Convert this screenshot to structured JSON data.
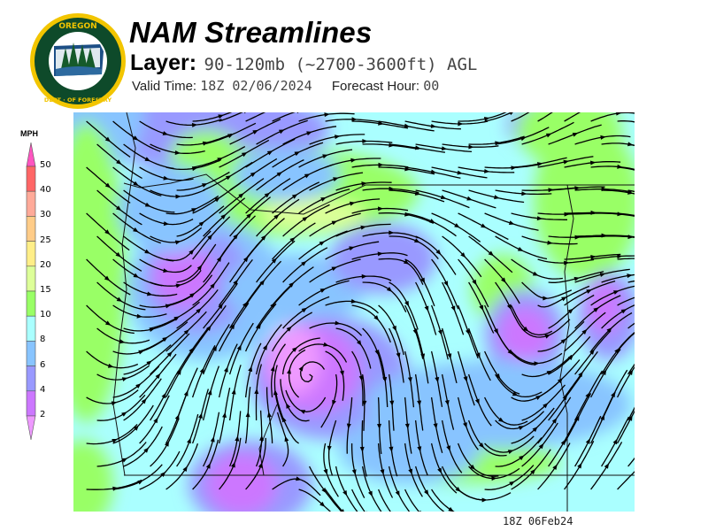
{
  "logo": {
    "text_top": "OREGON",
    "text_bottom": "DEPARTMENT OF FORESTRY"
  },
  "header": {
    "title": "NAM Streamlines",
    "layer_label": "Layer:",
    "layer_value": "90-120mb (~2700-3600ft) AGL",
    "valid_label": "Valid Time:",
    "valid_value": "18Z 02/06/2024",
    "forecast_label": "Forecast Hour:",
    "forecast_value": "00"
  },
  "legend": {
    "unit": "MPH",
    "ticks": [
      "50",
      "40",
      "30",
      "25",
      "20",
      "15",
      "10",
      "8",
      "6",
      "4",
      "2"
    ],
    "colors": {
      "over_50": "#ff55c0",
      "40_50": "#ff6666",
      "30_40": "#ffaa99",
      "25_30": "#ffcc88",
      "20_25": "#ffee88",
      "15_20": "#ddff99",
      "10_15": "#99ff66",
      "8_10": "#aaffff",
      "6_8": "#88c4ff",
      "4_6": "#9999ff",
      "2_4": "#cc77ff",
      "under_2": "#ee99ff"
    }
  },
  "stamp": "18Z 06Feb24"
}
